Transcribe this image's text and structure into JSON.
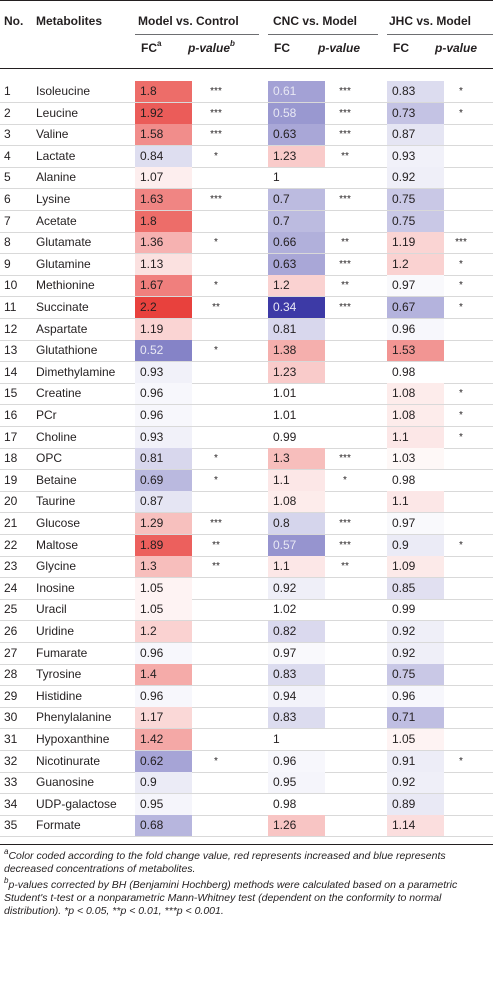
{
  "headers": {
    "no": "No.",
    "metabolites": "Metabolites",
    "group1": "Model vs. Control",
    "group2": "CNC vs. Model",
    "group3": "JHC vs. Model",
    "fc_label": "FC",
    "fc_sup": "a",
    "pvalue_label": "p-value",
    "pvalue_sup": "b"
  },
  "colors": {
    "high_red": "#e8413d",
    "low_blue": "#3d3aa6",
    "neutral": "#ffffff"
  },
  "rows": [
    {
      "no": "1",
      "name": "Isoleucine",
      "m_fc": "1.8",
      "m_p": "***",
      "c_fc": "0.61",
      "c_p": "***",
      "j_fc": "0.83",
      "j_p": "*"
    },
    {
      "no": "2",
      "name": "Leucine",
      "m_fc": "1.92",
      "m_p": "***",
      "c_fc": "0.58",
      "c_p": "***",
      "j_fc": "0.73",
      "j_p": "*"
    },
    {
      "no": "3",
      "name": "Valine",
      "m_fc": "1.58",
      "m_p": "***",
      "c_fc": "0.63",
      "c_p": "***",
      "j_fc": "0.87",
      "j_p": ""
    },
    {
      "no": "4",
      "name": "Lactate",
      "m_fc": "0.84",
      "m_p": "*",
      "c_fc": "1.23",
      "c_p": "**",
      "j_fc": "0.93",
      "j_p": ""
    },
    {
      "no": "5",
      "name": "Alanine",
      "m_fc": "1.07",
      "m_p": "",
      "c_fc": "1",
      "c_p": "",
      "j_fc": "0.92",
      "j_p": ""
    },
    {
      "no": "6",
      "name": "Lysine",
      "m_fc": "1.63",
      "m_p": "***",
      "c_fc": "0.7",
      "c_p": "***",
      "j_fc": "0.75",
      "j_p": ""
    },
    {
      "no": "7",
      "name": "Acetate",
      "m_fc": "1.8",
      "m_p": "",
      "c_fc": "0.7",
      "c_p": "",
      "j_fc": "0.75",
      "j_p": ""
    },
    {
      "no": "8",
      "name": "Glutamate",
      "m_fc": "1.36",
      "m_p": "*",
      "c_fc": "0.66",
      "c_p": "**",
      "j_fc": "1.19",
      "j_p": "***"
    },
    {
      "no": "9",
      "name": "Glutamine",
      "m_fc": "1.13",
      "m_p": "",
      "c_fc": "0.63",
      "c_p": "***",
      "j_fc": "1.2",
      "j_p": "*"
    },
    {
      "no": "10",
      "name": "Methionine",
      "m_fc": "1.67",
      "m_p": "*",
      "c_fc": "1.2",
      "c_p": "**",
      "j_fc": "0.97",
      "j_p": "*"
    },
    {
      "no": "11",
      "name": "Succinate",
      "m_fc": "2.2",
      "m_p": "**",
      "c_fc": "0.34",
      "c_p": "***",
      "j_fc": "0.67",
      "j_p": "*"
    },
    {
      "no": "12",
      "name": "Aspartate",
      "m_fc": "1.19",
      "m_p": "",
      "c_fc": "0.81",
      "c_p": "",
      "j_fc": "0.96",
      "j_p": ""
    },
    {
      "no": "13",
      "name": "Glutathione",
      "m_fc": "0.52",
      "m_p": "*",
      "c_fc": "1.38",
      "c_p": "",
      "j_fc": "1.53",
      "j_p": ""
    },
    {
      "no": "14",
      "name": "Dimethylamine",
      "m_fc": "0.93",
      "m_p": "",
      "c_fc": "1.23",
      "c_p": "",
      "j_fc": "0.98",
      "j_p": ""
    },
    {
      "no": "15",
      "name": "Creatine",
      "m_fc": "0.96",
      "m_p": "",
      "c_fc": "1.01",
      "c_p": "",
      "j_fc": "1.08",
      "j_p": "*"
    },
    {
      "no": "16",
      "name": "PCr",
      "m_fc": "0.96",
      "m_p": "",
      "c_fc": "1.01",
      "c_p": "",
      "j_fc": "1.08",
      "j_p": "*"
    },
    {
      "no": "17",
      "name": "Choline",
      "m_fc": "0.93",
      "m_p": "",
      "c_fc": "0.99",
      "c_p": "",
      "j_fc": "1.1",
      "j_p": "*"
    },
    {
      "no": "18",
      "name": "OPC",
      "m_fc": "0.81",
      "m_p": "*",
      "c_fc": "1.3",
      "c_p": "***",
      "j_fc": "1.03",
      "j_p": ""
    },
    {
      "no": "19",
      "name": "Betaine",
      "m_fc": "0.69",
      "m_p": "*",
      "c_fc": "1.1",
      "c_p": "*",
      "j_fc": "0.98",
      "j_p": ""
    },
    {
      "no": "20",
      "name": "Taurine",
      "m_fc": "0.87",
      "m_p": "",
      "c_fc": "1.08",
      "c_p": "",
      "j_fc": "1.1",
      "j_p": ""
    },
    {
      "no": "21",
      "name": "Glucose",
      "m_fc": "1.29",
      "m_p": "***",
      "c_fc": "0.8",
      "c_p": "***",
      "j_fc": "0.97",
      "j_p": ""
    },
    {
      "no": "22",
      "name": "Maltose",
      "m_fc": "1.89",
      "m_p": "**",
      "c_fc": "0.57",
      "c_p": "***",
      "j_fc": "0.9",
      "j_p": "*"
    },
    {
      "no": "23",
      "name": "Glycine",
      "m_fc": "1.3",
      "m_p": "**",
      "c_fc": "1.1",
      "c_p": "**",
      "j_fc": "1.09",
      "j_p": ""
    },
    {
      "no": "24",
      "name": "Inosine",
      "m_fc": "1.05",
      "m_p": "",
      "c_fc": "0.92",
      "c_p": "",
      "j_fc": "0.85",
      "j_p": ""
    },
    {
      "no": "25",
      "name": "Uracil",
      "m_fc": "1.05",
      "m_p": "",
      "c_fc": "1.02",
      "c_p": "",
      "j_fc": "0.99",
      "j_p": ""
    },
    {
      "no": "26",
      "name": "Uridine",
      "m_fc": "1.2",
      "m_p": "",
      "c_fc": "0.82",
      "c_p": "",
      "j_fc": "0.92",
      "j_p": ""
    },
    {
      "no": "27",
      "name": "Fumarate",
      "m_fc": "0.96",
      "m_p": "",
      "c_fc": "0.97",
      "c_p": "",
      "j_fc": "0.92",
      "j_p": ""
    },
    {
      "no": "28",
      "name": "Tyrosine",
      "m_fc": "1.4",
      "m_p": "",
      "c_fc": "0.83",
      "c_p": "",
      "j_fc": "0.75",
      "j_p": ""
    },
    {
      "no": "29",
      "name": "Histidine",
      "m_fc": "0.96",
      "m_p": "",
      "c_fc": "0.94",
      "c_p": "",
      "j_fc": "0.96",
      "j_p": ""
    },
    {
      "no": "30",
      "name": "Phenylalanine",
      "m_fc": "1.17",
      "m_p": "",
      "c_fc": "0.83",
      "c_p": "",
      "j_fc": "0.71",
      "j_p": ""
    },
    {
      "no": "31",
      "name": "Hypoxanthine",
      "m_fc": "1.42",
      "m_p": "",
      "c_fc": "1",
      "c_p": "",
      "j_fc": "1.05",
      "j_p": ""
    },
    {
      "no": "32",
      "name": "Nicotinurate",
      "m_fc": "0.62",
      "m_p": "*",
      "c_fc": "0.96",
      "c_p": "",
      "j_fc": "0.91",
      "j_p": "*"
    },
    {
      "no": "33",
      "name": "Guanosine",
      "m_fc": "0.9",
      "m_p": "",
      "c_fc": "0.95",
      "c_p": "",
      "j_fc": "0.92",
      "j_p": ""
    },
    {
      "no": "34",
      "name": "UDP-galactose",
      "m_fc": "0.95",
      "m_p": "",
      "c_fc": "0.98",
      "c_p": "",
      "j_fc": "0.89",
      "j_p": ""
    },
    {
      "no": "35",
      "name": "Formate",
      "m_fc": "0.68",
      "m_p": "",
      "c_fc": "1.26",
      "c_p": "",
      "j_fc": "1.14",
      "j_p": ""
    }
  ],
  "footnotes": {
    "a_sup": "a",
    "a_text": "Color coded according to the fold change value, red represents increased and blue represents decreased concentrations of metabolites.",
    "b_sup": "b",
    "b_text": "p-values corrected by BH (Benjamini Hochberg) methods were calculated based on a parametric Student's t-test or a nonparametric Mann-Whitney test (dependent on the conformity to normal distribution). *p < 0.05, **p < 0.01, ***p < 0.001."
  }
}
